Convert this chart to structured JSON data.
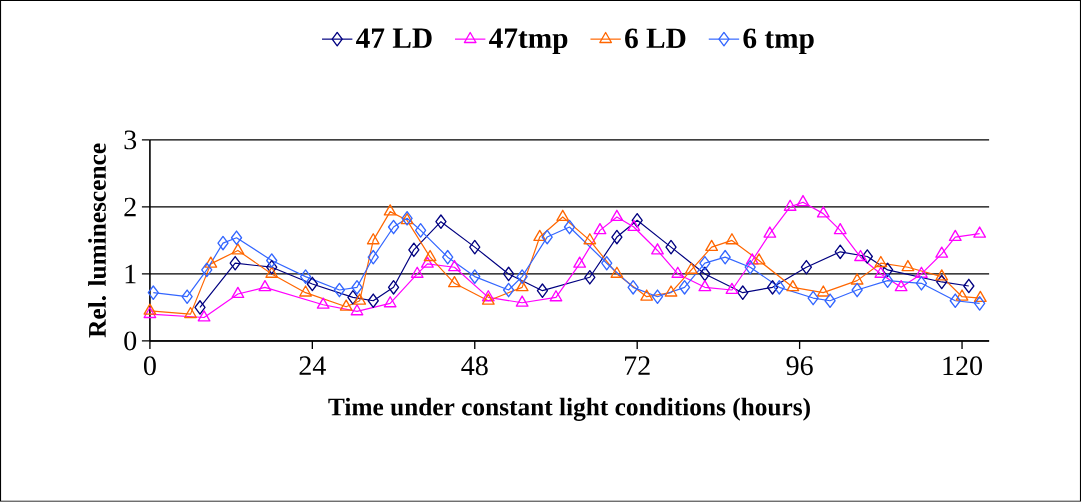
{
  "chart_data": {
    "type": "line",
    "xlabel": "Time under constant light conditions (hours)",
    "ylabel": "Rel. luminescence",
    "xlim": [
      0,
      124
    ],
    "xticks": [
      0,
      24,
      48,
      72,
      96,
      120
    ],
    "ylim": [
      0,
      3
    ],
    "yticks": [
      0,
      1,
      2,
      3
    ],
    "grid": "y",
    "legend": "top",
    "series": [
      {
        "name": "47 LD",
        "color": "#000080",
        "marker": "diamond",
        "x": [
          7.4,
          12.6,
          18,
          24,
          30,
          33,
          36,
          39,
          43,
          48,
          53,
          58,
          65,
          69,
          72,
          77,
          82,
          87.6,
          92,
          97,
          102,
          106,
          109,
          117,
          121
        ],
        "values": [
          0.5,
          1.16,
          1.1,
          0.85,
          0.65,
          0.6,
          0.8,
          1.36,
          1.78,
          1.4,
          1.0,
          0.75,
          0.95,
          1.55,
          1.8,
          1.4,
          1.0,
          0.72,
          0.8,
          1.1,
          1.33,
          1.26,
          1.06,
          0.88,
          0.82
        ]
      },
      {
        "name": "47tmp",
        "color": "#ff00ff",
        "marker": "triangle",
        "x": [
          0,
          8,
          13,
          17,
          25.6,
          30.6,
          35.5,
          39.5,
          41,
          45,
          50,
          55,
          60,
          63.5,
          66.5,
          69,
          71.5,
          75,
          78,
          82,
          86,
          89,
          91.6,
          94.6,
          96.5,
          99.5,
          102,
          105,
          108,
          111,
          114,
          117,
          119,
          122.6
        ],
        "values": [
          0.4,
          0.35,
          0.7,
          0.8,
          0.54,
          0.44,
          0.56,
          1.0,
          1.15,
          1.1,
          0.65,
          0.57,
          0.65,
          1.15,
          1.65,
          1.85,
          1.7,
          1.35,
          1.0,
          0.8,
          0.76,
          1.2,
          1.6,
          2.0,
          2.07,
          1.9,
          1.65,
          1.25,
          1.0,
          0.8,
          1.0,
          1.3,
          1.55,
          1.6
        ]
      },
      {
        "name": "6 LD",
        "color": "#ff6600",
        "marker": "triangle",
        "x": [
          0,
          6,
          9,
          13,
          18,
          23,
          29,
          31,
          33,
          35.5,
          38,
          41.4,
          45,
          50,
          55,
          57.6,
          61,
          65,
          69,
          73.4,
          77,
          80,
          83,
          86,
          90,
          95,
          99.5,
          104.5,
          108,
          112,
          117,
          120,
          122.7
        ],
        "values": [
          0.45,
          0.4,
          1.15,
          1.35,
          1.0,
          0.72,
          0.51,
          0.6,
          1.5,
          1.93,
          1.8,
          1.25,
          0.86,
          0.6,
          0.8,
          1.55,
          1.85,
          1.5,
          1.0,
          0.66,
          0.72,
          1.06,
          1.4,
          1.5,
          1.2,
          0.8,
          0.72,
          0.9,
          1.16,
          1.1,
          0.96,
          0.66,
          0.64
        ]
      },
      {
        "name": "6 tmp",
        "color": "#3366ff",
        "marker": "diamond",
        "x": [
          0.5,
          5.5,
          8.4,
          10.8,
          12.8,
          18,
          23,
          28,
          30.6,
          33,
          36,
          38,
          40,
          44,
          48,
          53,
          55,
          58.7,
          62,
          67.5,
          71.4,
          75,
          79,
          82,
          85,
          88.7,
          93,
          98,
          100.5,
          104.5,
          109,
          114,
          119,
          122.6
        ],
        "values": [
          0.72,
          0.66,
          1.06,
          1.46,
          1.54,
          1.2,
          0.96,
          0.76,
          0.8,
          1.25,
          1.7,
          1.83,
          1.65,
          1.25,
          0.96,
          0.76,
          0.96,
          1.55,
          1.7,
          1.16,
          0.8,
          0.66,
          0.8,
          1.16,
          1.25,
          1.1,
          0.8,
          0.64,
          0.6,
          0.76,
          0.9,
          0.86,
          0.6,
          0.56
        ]
      }
    ]
  }
}
